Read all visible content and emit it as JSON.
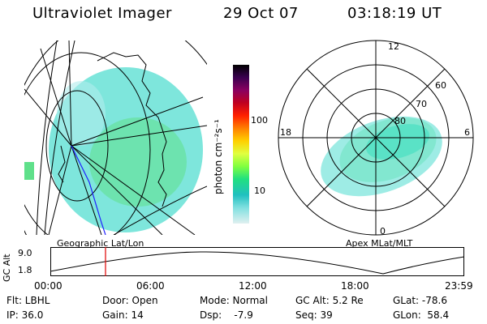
{
  "header": {
    "title": "Ultraviolet Imager",
    "date": "29 Oct 07",
    "time": "03:18:19 UT"
  },
  "colorbar": {
    "unit_label": "photon cm⁻²s⁻¹",
    "scale": "log",
    "ticks": [
      "100",
      "10"
    ],
    "colors": [
      "#000000",
      "#3a0050",
      "#8a0060",
      "#c00020",
      "#ff2000",
      "#ff8000",
      "#ffd000",
      "#e0ff40",
      "#80ff40",
      "#20e080",
      "#20c0c0",
      "#80e0e0",
      "#e0f0f0"
    ]
  },
  "panels": {
    "geo_label": "Geographic Lat/Lon",
    "apex_label": "Apex MLat/MLT"
  },
  "polar": {
    "mlt_labels": [
      "12",
      "18",
      "6",
      "0"
    ],
    "lat_labels": [
      "60",
      "70",
      "80"
    ],
    "aurora_color": "#40e0c0"
  },
  "altitude_plot": {
    "ylabel": "GC Alt",
    "yticks": [
      "9.0",
      "1.8"
    ],
    "xticks": [
      "00:00",
      "06:00",
      "12:00",
      "18:00",
      "23:59"
    ],
    "marker_color": "#e00000"
  },
  "info": {
    "filter": "Flt: LBHL",
    "ip": "IP: 36.0",
    "door": "Door: Open",
    "gain": "Gain: 14",
    "mode": "Mode: Normal",
    "dsp": "Dsp:    -7.9",
    "gc_alt": "GC Alt: 5.2 Re",
    "seq": "Seq: 39",
    "glat": "GLat: -78.6",
    "glon": "GLon:  58.4"
  }
}
